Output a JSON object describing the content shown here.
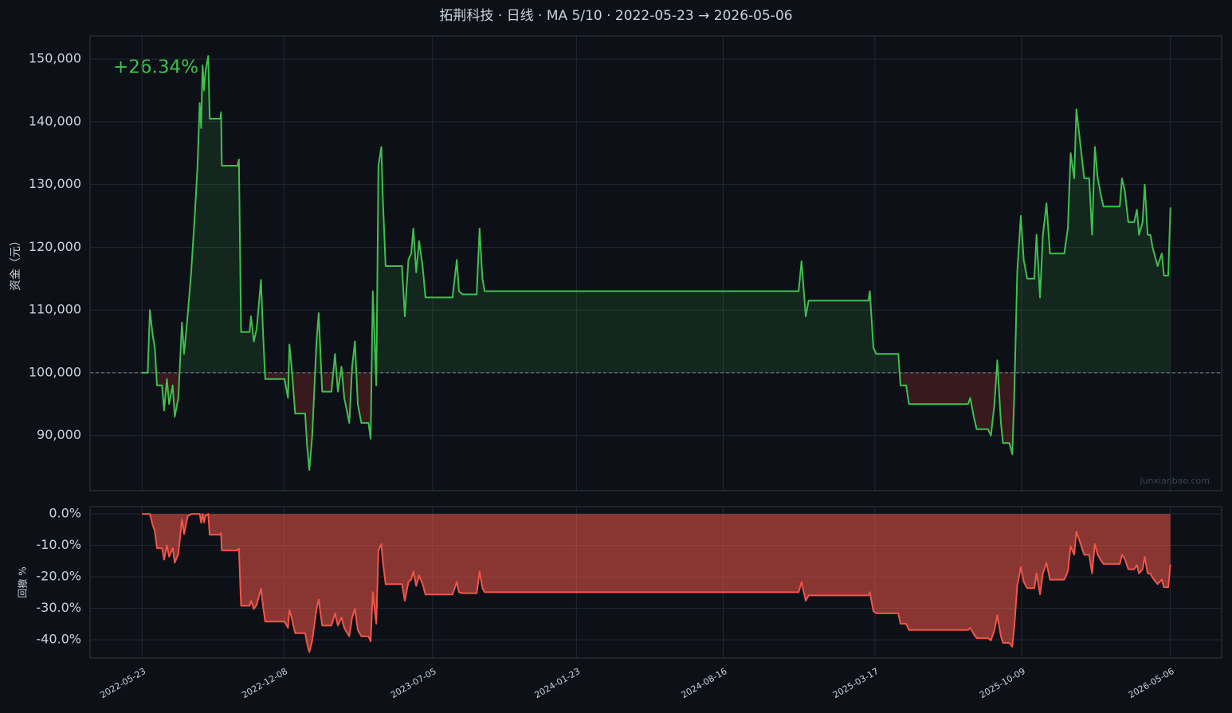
{
  "chart_data": [
    {
      "type": "line",
      "title": "拓荆科技 · 日线 · MA 5/10 · 2022-05-23 → 2026-05-06",
      "ylabel": "资金（元）",
      "annotation": "+26.34%",
      "watermark": "junxianbao.com",
      "xlim": [
        "2022-03-11",
        "2026-07-17"
      ],
      "ylim": [
        81200,
        153700
      ],
      "hline": 100000,
      "grid": true,
      "yticks": [
        {
          "value": 90000,
          "label": "90,000"
        },
        {
          "value": 100000,
          "label": "100,000"
        },
        {
          "value": 110000,
          "label": "110,000"
        },
        {
          "value": 120000,
          "label": "120,000"
        },
        {
          "value": 130000,
          "label": "130,000"
        },
        {
          "value": 140000,
          "label": "140,000"
        },
        {
          "value": 150000,
          "label": "150,000"
        }
      ],
      "x": [
        "2022-05-23",
        "2022-05-31",
        "2022-06-03",
        "2022-06-07",
        "2022-06-10",
        "2022-06-13",
        "2022-06-20",
        "2022-06-23",
        "2022-06-27",
        "2022-06-30",
        "2022-07-05",
        "2022-07-08",
        "2022-07-13",
        "2022-07-18",
        "2022-07-21",
        "2022-07-26",
        "2022-07-31",
        "2022-08-05",
        "2022-08-09",
        "2022-08-12",
        "2022-08-14",
        "2022-08-16",
        "2022-08-18",
        "2022-08-20",
        "2022-08-24",
        "2022-08-26",
        "2022-09-10",
        "2022-09-11",
        "2022-09-12",
        "2022-10-04",
        "2022-10-06",
        "2022-10-09",
        "2022-10-21",
        "2022-10-23",
        "2022-10-27",
        "2022-10-31",
        "2022-11-06",
        "2022-11-09",
        "2022-11-12",
        "2022-12-09",
        "2022-12-14",
        "2022-12-16",
        "2022-12-19",
        "2022-12-24",
        "2023-01-07",
        "2023-01-10",
        "2023-01-13",
        "2023-01-17",
        "2023-01-23",
        "2023-01-26",
        "2023-01-31",
        "2023-02-13",
        "2023-02-18",
        "2023-02-22",
        "2023-02-27",
        "2023-03-03",
        "2023-03-10",
        "2023-03-14",
        "2023-03-18",
        "2023-03-22",
        "2023-03-27",
        "2023-04-06",
        "2023-04-09",
        "2023-04-12",
        "2023-04-17",
        "2023-04-20",
        "2023-04-24",
        "2023-04-26",
        "2023-04-30",
        "2023-05-23",
        "2023-05-27",
        "2023-06-01",
        "2023-06-05",
        "2023-06-08",
        "2023-06-12",
        "2023-06-16",
        "2023-06-21",
        "2023-06-25",
        "2023-08-02",
        "2023-08-08",
        "2023-08-11",
        "2023-08-16",
        "2023-09-05",
        "2023-09-09",
        "2023-09-13",
        "2023-09-16",
        "2024-11-30",
        "2024-12-04",
        "2024-12-10",
        "2024-12-14",
        "2025-03-08",
        "2025-03-10",
        "2025-03-15",
        "2025-03-19",
        "2025-04-19",
        "2025-04-22",
        "2025-04-30",
        "2025-05-04",
        "2025-05-08",
        "2025-07-26",
        "2025-07-29",
        "2025-08-03",
        "2025-08-07",
        "2025-08-23",
        "2025-08-27",
        "2025-09-01",
        "2025-09-05",
        "2025-09-10",
        "2025-09-13",
        "2025-09-22",
        "2025-09-26",
        "2025-09-29",
        "2025-10-03",
        "2025-10-08",
        "2025-10-12",
        "2025-10-17",
        "2025-10-27",
        "2025-10-30",
        "2025-11-04",
        "2025-11-08",
        "2025-11-13",
        "2025-11-18",
        "2025-12-08",
        "2025-12-13",
        "2025-12-17",
        "2025-12-22",
        "2025-12-25",
        "2025-12-31",
        "2026-01-05",
        "2026-01-12",
        "2026-01-16",
        "2026-01-20",
        "2026-01-24",
        "2026-01-29",
        "2026-02-01",
        "2026-02-24",
        "2026-02-27",
        "2026-03-03",
        "2026-03-08",
        "2026-03-16",
        "2026-03-20",
        "2026-03-23",
        "2026-03-28",
        "2026-03-31",
        "2026-04-04",
        "2026-04-08",
        "2026-04-11",
        "2026-04-18",
        "2026-04-24",
        "2026-04-27",
        "2026-05-03",
        "2026-05-06"
      ],
      "series": [
        {
          "color": "#3fbf4f",
          "values": [
            100000,
            100000,
            110000,
            106000,
            104000,
            98000,
            98000,
            94000,
            99000,
            95000,
            98000,
            93000,
            96000,
            108000,
            103000,
            109000,
            116000,
            125000,
            133000,
            143000,
            139000,
            149000,
            145000,
            148000,
            150500,
            140500,
            140500,
            141500,
            133000,
            133000,
            134000,
            106500,
            106500,
            109000,
            105000,
            107000,
            114800,
            106000,
            99000,
            99000,
            96000,
            104500,
            101000,
            93500,
            93500,
            88000,
            84500,
            90000,
            105000,
            109500,
            97000,
            97000,
            103000,
            97000,
            101000,
            96000,
            92000,
            101000,
            105000,
            95000,
            92000,
            92000,
            89500,
            113000,
            98000,
            133000,
            136000,
            128000,
            117000,
            117000,
            109000,
            118000,
            119000,
            123000,
            116000,
            121000,
            117000,
            112000,
            112000,
            118000,
            113000,
            112500,
            112500,
            123000,
            115000,
            113000,
            113000,
            117800,
            109000,
            111500,
            111500,
            113000,
            104000,
            103000,
            103000,
            98000,
            98000,
            95000,
            95000,
            95000,
            96000,
            93000,
            91000,
            91000,
            90000,
            95000,
            102000,
            92000,
            88800,
            88800,
            87000,
            97000,
            116000,
            125000,
            118000,
            115000,
            115000,
            122000,
            112000,
            122000,
            127000,
            119000,
            119000,
            123000,
            135000,
            131000,
            142000,
            136000,
            131000,
            131000,
            122000,
            136000,
            131000,
            128000,
            126500,
            126500,
            131000,
            129000,
            124000,
            124000,
            126000,
            122000,
            124000,
            130000,
            122000,
            122000,
            120000,
            117000,
            119000,
            115500,
            115500,
            126340
          ]
        }
      ]
    },
    {
      "type": "line",
      "ylabel": "回撤 %",
      "xlim": [
        "2022-03-11",
        "2026-07-17"
      ],
      "ylim": [
        -45.8,
        2.3
      ],
      "grid": true,
      "yticks": [
        {
          "value": -40,
          "label": "-40.0%"
        },
        {
          "value": -30,
          "label": "-30.0%"
        },
        {
          "value": -20,
          "label": "-20.0%"
        },
        {
          "value": -10,
          "label": "-10.0%"
        },
        {
          "value": 0,
          "label": "0.0%"
        }
      ],
      "xticks": [
        "2022-05-23",
        "2022-12-08",
        "2023-07-05",
        "2024-01-23",
        "2024-08-16",
        "2025-03-17",
        "2025-10-09",
        "2026-05-06"
      ],
      "x": [
        "2022-05-23",
        "2022-05-31",
        "2022-06-03",
        "2022-06-07",
        "2022-06-10",
        "2022-06-13",
        "2022-06-20",
        "2022-06-23",
        "2022-06-27",
        "2022-06-30",
        "2022-07-05",
        "2022-07-08",
        "2022-07-13",
        "2022-07-18",
        "2022-07-21",
        "2022-07-26",
        "2022-07-31",
        "2022-08-05",
        "2022-08-09",
        "2022-08-12",
        "2022-08-14",
        "2022-08-16",
        "2022-08-18",
        "2022-08-20",
        "2022-08-24",
        "2022-08-26",
        "2022-09-10",
        "2022-09-11",
        "2022-09-12",
        "2022-10-04",
        "2022-10-06",
        "2022-10-09",
        "2022-10-21",
        "2022-10-23",
        "2022-10-27",
        "2022-10-31",
        "2022-11-06",
        "2022-11-09",
        "2022-11-12",
        "2022-12-09",
        "2022-12-14",
        "2022-12-16",
        "2022-12-19",
        "2022-12-24",
        "2023-01-07",
        "2023-01-10",
        "2023-01-13",
        "2023-01-17",
        "2023-01-23",
        "2023-01-26",
        "2023-01-31",
        "2023-02-13",
        "2023-02-18",
        "2023-02-22",
        "2023-02-27",
        "2023-03-03",
        "2023-03-10",
        "2023-03-14",
        "2023-03-18",
        "2023-03-22",
        "2023-03-27",
        "2023-04-06",
        "2023-04-09",
        "2023-04-12",
        "2023-04-17",
        "2023-04-20",
        "2023-04-24",
        "2023-04-26",
        "2023-04-30",
        "2023-05-23",
        "2023-05-27",
        "2023-06-01",
        "2023-06-05",
        "2023-06-08",
        "2023-06-12",
        "2023-06-16",
        "2023-06-21",
        "2023-06-25",
        "2023-08-02",
        "2023-08-08",
        "2023-08-11",
        "2023-08-16",
        "2023-09-05",
        "2023-09-09",
        "2023-09-13",
        "2023-09-16",
        "2024-11-30",
        "2024-12-04",
        "2024-12-10",
        "2024-12-14",
        "2025-03-08",
        "2025-03-10",
        "2025-03-15",
        "2025-03-19",
        "2025-04-19",
        "2025-04-22",
        "2025-04-30",
        "2025-05-04",
        "2025-05-08",
        "2025-07-26",
        "2025-07-29",
        "2025-08-03",
        "2025-08-07",
        "2025-08-23",
        "2025-08-27",
        "2025-09-01",
        "2025-09-05",
        "2025-09-10",
        "2025-09-13",
        "2025-09-22",
        "2025-09-26",
        "2025-09-29",
        "2025-10-03",
        "2025-10-08",
        "2025-10-12",
        "2025-10-17",
        "2025-10-27",
        "2025-10-30",
        "2025-11-04",
        "2025-11-08",
        "2025-11-13",
        "2025-11-18",
        "2025-12-08",
        "2025-12-13",
        "2025-12-17",
        "2025-12-22",
        "2025-12-25",
        "2025-12-31",
        "2026-01-05",
        "2026-01-12",
        "2026-01-16",
        "2026-01-20",
        "2026-01-24",
        "2026-01-29",
        "2026-02-01",
        "2026-02-24",
        "2026-02-27",
        "2026-03-03",
        "2026-03-08",
        "2026-03-16",
        "2026-03-20",
        "2026-03-23",
        "2026-03-28",
        "2026-03-31",
        "2026-04-04",
        "2026-04-08",
        "2026-04-11",
        "2026-04-18",
        "2026-04-24",
        "2026-04-27",
        "2026-05-03",
        "2026-05-06"
      ],
      "series": [
        {
          "color": "#f0554a",
          "values": [
            0,
            0,
            0,
            -3.6,
            -5.5,
            -10.9,
            -10.9,
            -14.5,
            -10.0,
            -13.6,
            -10.9,
            -15.5,
            -12.7,
            -1.8,
            -6.4,
            -0.9,
            0,
            0,
            0,
            0,
            -2.8,
            0,
            -2.7,
            -0.7,
            0,
            -6.6,
            -6.6,
            -6.0,
            -11.6,
            -11.6,
            -11.0,
            -29.2,
            -29.2,
            -27.6,
            -30.2,
            -28.9,
            -23.7,
            -29.6,
            -34.2,
            -34.2,
            -36.2,
            -30.6,
            -32.9,
            -37.9,
            -37.9,
            -41.5,
            -43.9,
            -40.2,
            -30.2,
            -27.2,
            -35.5,
            -35.5,
            -31.6,
            -35.5,
            -32.9,
            -36.2,
            -38.9,
            -32.9,
            -30.2,
            -36.9,
            -38.9,
            -38.9,
            -40.5,
            -24.9,
            -34.9,
            -11.6,
            -9.6,
            -15.0,
            -22.3,
            -22.3,
            -27.6,
            -21.6,
            -20.9,
            -18.3,
            -22.9,
            -19.6,
            -22.3,
            -25.6,
            -25.6,
            -21.6,
            -24.9,
            -25.2,
            -25.2,
            -18.3,
            -23.6,
            -24.9,
            -24.9,
            -21.7,
            -27.6,
            -25.9,
            -25.9,
            -24.9,
            -30.9,
            -31.6,
            -31.6,
            -34.9,
            -34.9,
            -36.9,
            -36.9,
            -36.9,
            -36.2,
            -38.2,
            -39.5,
            -39.5,
            -40.2,
            -36.9,
            -32.2,
            -38.9,
            -41.0,
            -41.0,
            -42.2,
            -35.5,
            -22.9,
            -16.9,
            -21.6,
            -23.6,
            -23.6,
            -18.9,
            -25.6,
            -18.9,
            -15.6,
            -20.9,
            -20.9,
            -18.3,
            -10.3,
            -13.0,
            -5.6,
            -9.6,
            -13.0,
            -13.0,
            -18.9,
            -9.6,
            -13.0,
            -15.0,
            -15.9,
            -15.9,
            -13.0,
            -14.3,
            -17.6,
            -17.6,
            -16.3,
            -18.9,
            -17.6,
            -13.6,
            -18.9,
            -18.9,
            -20.3,
            -22.3,
            -20.9,
            -23.3,
            -23.3,
            -16.1
          ]
        }
      ]
    }
  ]
}
